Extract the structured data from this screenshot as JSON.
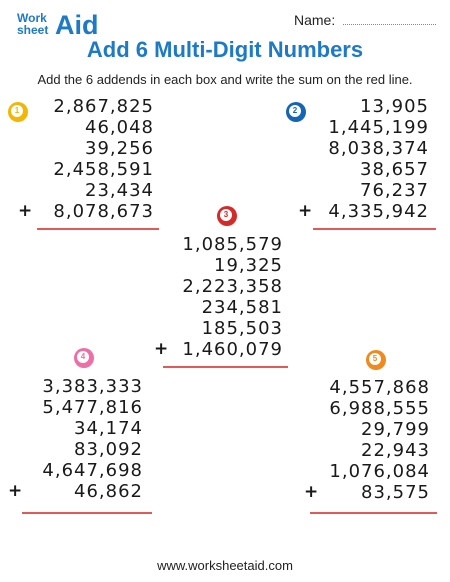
{
  "logo": {
    "line1": "Work",
    "line2": "sheet",
    "line3": "Aid"
  },
  "header": {
    "name_label": "Name:",
    "title": "Add 6 Multi-Digit Numbers",
    "instructions": "Add the 6 addends in each box and write the sum on the red line."
  },
  "problems": [
    {
      "number": "1",
      "color": "#f2b705",
      "addends": [
        "2,867,825",
        "46,048",
        "39,256",
        "2,458,591",
        "23,434",
        "8,078,673"
      ],
      "operator": "+"
    },
    {
      "number": "2",
      "color": "#1565b5",
      "addends": [
        "13,905",
        "1,445,199",
        "8,038,374",
        "38,657",
        "76,237",
        "4,335,942"
      ],
      "operator": "+"
    },
    {
      "number": "3",
      "color": "#d42a2a",
      "addends": [
        "1,085,579",
        "19,325",
        "2,223,358",
        "234,581",
        "185,503",
        "1,460,079"
      ],
      "operator": "+"
    },
    {
      "number": "4",
      "color": "#ee6fa6",
      "addends": [
        "3,383,333",
        "5,477,816",
        "34,174",
        "83,092",
        "4,647,698",
        "46,862"
      ],
      "operator": "+"
    },
    {
      "number": "5",
      "color": "#f08a1c",
      "addends": [
        "4,557,868",
        "6,988,555",
        "29,799",
        "22,943",
        "1,076,084",
        "83,575"
      ],
      "operator": "+"
    }
  ],
  "footer": {
    "url": "www.worksheetaid.com"
  }
}
